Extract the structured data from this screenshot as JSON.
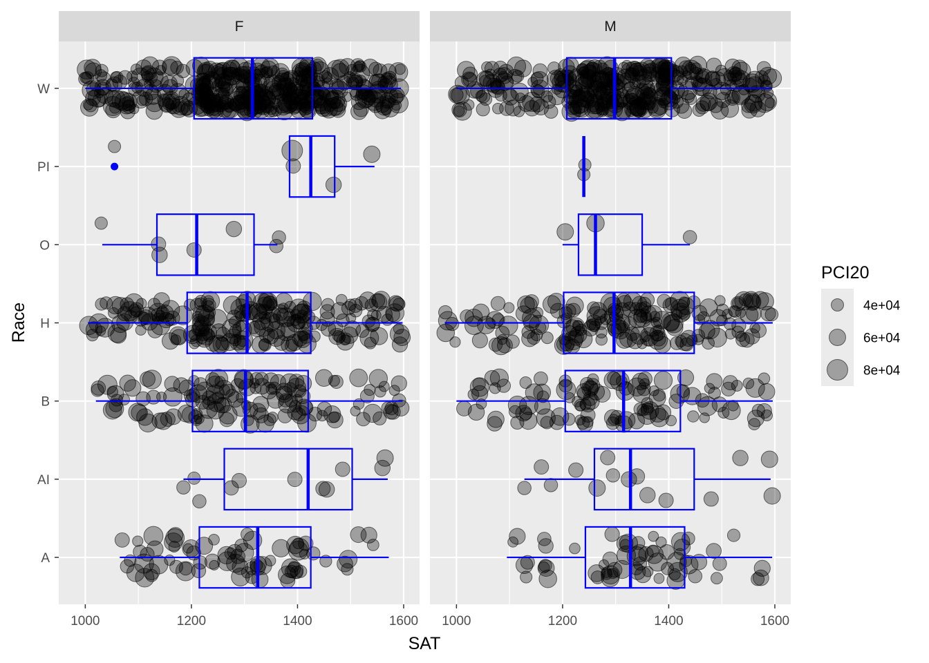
{
  "chart_data": {
    "type": "boxplot",
    "x_label": "SAT",
    "y_label": "Race",
    "x_ticks": [
      1000,
      1200,
      1400,
      1600
    ],
    "x_range": [
      950,
      1630
    ],
    "categories": [
      "A",
      "AI",
      "B",
      "H",
      "O",
      "PI",
      "W"
    ],
    "panels": [
      {
        "label": "F",
        "boxes": {
          "W": {
            "min": 1000,
            "q1": 1205,
            "median": 1315,
            "q3": 1428,
            "max": 1595,
            "outliers": []
          },
          "PI": {
            "min": 1385,
            "q1": 1385,
            "median": 1425,
            "q3": 1470,
            "max": 1545,
            "outliers": [
              1055
            ]
          },
          "O": {
            "min": 1032,
            "q1": 1135,
            "median": 1210,
            "q3": 1318,
            "max": 1362,
            "outliers": []
          },
          "H": {
            "min": 1005,
            "q1": 1192,
            "median": 1305,
            "q3": 1425,
            "max": 1598,
            "outliers": []
          },
          "B": {
            "min": 1020,
            "q1": 1202,
            "median": 1302,
            "q3": 1420,
            "max": 1598,
            "outliers": []
          },
          "AI": {
            "min": 1185,
            "q1": 1262,
            "median": 1420,
            "q3": 1503,
            "max": 1570,
            "outliers": []
          },
          "A": {
            "min": 1065,
            "q1": 1215,
            "median": 1325,
            "q3": 1425,
            "max": 1572,
            "outliers": []
          }
        },
        "points": {
          "PI": [
            [
              1055,
              40000
            ],
            [
              1390,
              80000
            ],
            [
              1392,
              50000
            ],
            [
              1468,
              55000
            ],
            [
              1540,
              60000
            ]
          ],
          "O": [
            [
              1030,
              40000
            ],
            [
              1138,
              50000
            ],
            [
              1140,
              55000
            ],
            [
              1205,
              50000
            ],
            [
              1280,
              55000
            ],
            [
              1360,
              45000
            ],
            [
              1365,
              45000
            ]
          ],
          "AI": [
            [
              1215,
              45000
            ],
            [
              1185,
              45000
            ],
            [
              1205,
              40000
            ],
            [
              1275,
              50000
            ],
            [
              1290,
              50000
            ],
            [
              1395,
              50000
            ],
            [
              1448,
              50000
            ],
            [
              1455,
              55000
            ],
            [
              1485,
              50000
            ],
            [
              1560,
              55000
            ],
            [
              1565,
              60000
            ]
          ],
          "W": [
            [
              1000,
              45000
            ],
            [
              1010,
              40000
            ],
            [
              1015,
              45000
            ],
            [
              1035,
              45000
            ],
            [
              1050,
              40000
            ],
            [
              1080,
              50000
            ],
            [
              1110,
              55000
            ],
            [
              1130,
              60000
            ],
            [
              1150,
              55000
            ],
            [
              1180,
              70000
            ],
            [
              1240,
              60000
            ],
            [
              1290,
              65000
            ],
            [
              1360,
              70000
            ],
            [
              1420,
              60000
            ],
            [
              1480,
              60000
            ],
            [
              1530,
              65000
            ],
            [
              1560,
              60000
            ],
            [
              1590,
              75000
            ]
          ]
        }
      },
      {
        "label": "M",
        "boxes": {
          "W": {
            "min": 1000,
            "q1": 1208,
            "median": 1298,
            "q3": 1405,
            "max": 1595,
            "outliers": []
          },
          "PI": {
            "min": 1240,
            "q1": 1240,
            "median": 1240,
            "q3": 1240,
            "max": 1240,
            "outliers": []
          },
          "O": {
            "min": 1200,
            "q1": 1230,
            "median": 1262,
            "q3": 1350,
            "max": 1440,
            "outliers": []
          },
          "H": {
            "min": 978,
            "q1": 1202,
            "median": 1297,
            "q3": 1448,
            "max": 1596,
            "outliers": []
          },
          "B": {
            "min": 1000,
            "q1": 1205,
            "median": 1315,
            "q3": 1422,
            "max": 1596,
            "outliers": []
          },
          "AI": {
            "min": 1128,
            "q1": 1260,
            "median": 1328,
            "q3": 1448,
            "max": 1592,
            "outliers": []
          },
          "A": {
            "min": 1095,
            "q1": 1243,
            "median": 1328,
            "q3": 1430,
            "max": 1595,
            "outliers": []
          }
        },
        "points": {
          "PI": [
            [
              1240,
              40000
            ],
            [
              1242,
              40000
            ]
          ],
          "O": [
            [
              1205,
              60000
            ],
            [
              1262,
              65000
            ],
            [
              1440,
              45000
            ]
          ],
          "AI": [
            [
              1178,
              45000
            ],
            [
              1128,
              45000
            ],
            [
              1160,
              50000
            ],
            [
              1225,
              50000
            ],
            [
              1265,
              60000
            ],
            [
              1285,
              50000
            ],
            [
              1295,
              45000
            ],
            [
              1325,
              55000
            ],
            [
              1340,
              55000
            ],
            [
              1360,
              55000
            ],
            [
              1395,
              50000
            ],
            [
              1480,
              50000
            ],
            [
              1535,
              55000
            ],
            [
              1590,
              60000
            ],
            [
              1595,
              60000
            ]
          ],
          "W": [
            [
              1000,
              45000
            ],
            [
              1010,
              45000
            ],
            [
              1025,
              45000
            ],
            [
              1040,
              50000
            ],
            [
              1055,
              40000
            ],
            [
              1070,
              50000
            ],
            [
              1095,
              45000
            ],
            [
              1110,
              50000
            ],
            [
              1200,
              60000
            ],
            [
              1300,
              65000
            ],
            [
              1400,
              60000
            ],
            [
              1500,
              65000
            ],
            [
              1560,
              60000
            ],
            [
              1595,
              70000
            ]
          ]
        }
      }
    ],
    "legend": {
      "title": "PCI20",
      "entries": [
        {
          "label": "4e+04",
          "value": 40000
        },
        {
          "label": "6e+04",
          "value": 60000
        },
        {
          "label": "8e+04",
          "value": 80000
        }
      ]
    },
    "colors": {
      "box": "#0000ff",
      "point": "#000000",
      "panel_bg": "#ebebeb",
      "grid": "#ffffff",
      "strip_bg": "#d9d9d9"
    }
  }
}
